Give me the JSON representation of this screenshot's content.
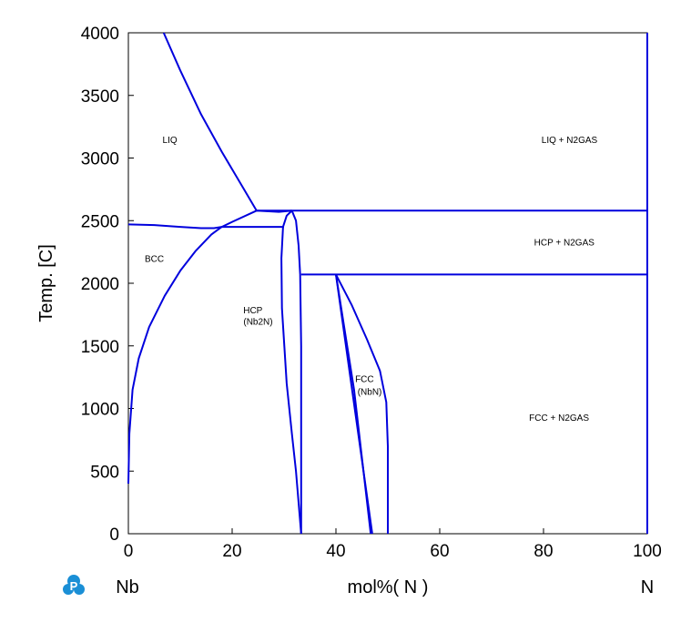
{
  "chart_data": {
    "type": "line",
    "title": "",
    "xlabel": "mol%( N )",
    "ylabel": "Temp. [C]",
    "xlim": [
      0,
      100
    ],
    "ylim": [
      0,
      4000
    ],
    "x_ticks": [
      "0",
      "20",
      "40",
      "60",
      "80",
      "100"
    ],
    "y_ticks": [
      "0",
      "500",
      "1000",
      "1500",
      "2000",
      "2500",
      "3000",
      "3500",
      "4000"
    ],
    "x_left_element": "Nb",
    "x_right_element": "N",
    "grid": false,
    "line_color": "#0000dd",
    "region_labels": [
      {
        "text": "LIQ",
        "x": 8,
        "y": 3150
      },
      {
        "text": "LIQ + N2GAS",
        "x": 85,
        "y": 3150
      },
      {
        "text": "BCC",
        "x": 5,
        "y": 2200
      },
      {
        "text": "HCP + N2GAS",
        "x": 84,
        "y": 2330
      },
      {
        "text": "HCP",
        "x": 24,
        "y": 1790
      },
      {
        "text": "(Nb2N)",
        "x": 25,
        "y": 1700
      },
      {
        "text": "FCC",
        "x": 45.5,
        "y": 1240
      },
      {
        "text": "(NbN)",
        "x": 46.5,
        "y": 1140
      },
      {
        "text": "FCC + N2GAS",
        "x": 83,
        "y": 930
      }
    ],
    "series": [
      {
        "values": [
          [
            6.8,
            4000
          ],
          [
            10,
            3700
          ],
          [
            14,
            3350
          ],
          [
            18,
            3050
          ],
          [
            22,
            2770
          ],
          [
            24.7,
            2580
          ]
        ]
      },
      {
        "values": [
          [
            0,
            2470
          ],
          [
            5,
            2465
          ],
          [
            10,
            2450
          ],
          [
            14,
            2440
          ],
          [
            16.5,
            2440
          ],
          [
            18,
            2450
          ]
        ]
      },
      {
        "values": [
          [
            0,
            400
          ],
          [
            0.2,
            800
          ],
          [
            0.8,
            1150
          ],
          [
            2,
            1400
          ],
          [
            4,
            1650
          ],
          [
            7,
            1900
          ],
          [
            10,
            2100
          ],
          [
            13,
            2260
          ],
          [
            16,
            2390
          ],
          [
            18,
            2450
          ],
          [
            20,
            2490
          ],
          [
            24.7,
            2580
          ],
          [
            29,
            2570
          ],
          [
            31.5,
            2580
          ]
        ]
      },
      {
        "values": [
          [
            18,
            2450
          ],
          [
            30,
            2450
          ]
        ]
      },
      {
        "values": [
          [
            24.7,
            2580
          ],
          [
            100,
            2580
          ]
        ]
      },
      {
        "values": [
          [
            31.5,
            2580
          ],
          [
            30.5,
            2540
          ],
          [
            29.8,
            2450
          ],
          [
            29.5,
            2200
          ],
          [
            29.6,
            1800
          ],
          [
            30.5,
            1200
          ],
          [
            31.5,
            800
          ],
          [
            32.3,
            500
          ],
          [
            33,
            150
          ],
          [
            33.3,
            0
          ]
        ]
      },
      {
        "values": [
          [
            31.5,
            2580
          ],
          [
            32.3,
            2500
          ],
          [
            32.8,
            2300
          ],
          [
            33.1,
            2070
          ],
          [
            33.3,
            1500
          ],
          [
            33.3,
            800
          ],
          [
            33.3,
            0
          ]
        ]
      },
      {
        "values": [
          [
            33.3,
            2070
          ],
          [
            100,
            2070
          ]
        ]
      },
      {
        "values": [
          [
            40,
            2070
          ],
          [
            47,
            0
          ]
        ]
      },
      {
        "values": [
          [
            40,
            2070
          ],
          [
            43.5,
            1150
          ],
          [
            46.7,
            0
          ]
        ]
      },
      {
        "values": [
          [
            40,
            2070
          ],
          [
            43,
            1830
          ],
          [
            46,
            1550
          ],
          [
            48.5,
            1300
          ],
          [
            49.7,
            1050
          ],
          [
            50,
            700
          ],
          [
            50,
            0
          ]
        ]
      },
      {
        "values": [
          [
            100,
            0
          ],
          [
            100,
            4000
          ]
        ]
      }
    ]
  },
  "ui": {
    "logo_letter": "P",
    "logo_color": "#1a8fd6"
  }
}
